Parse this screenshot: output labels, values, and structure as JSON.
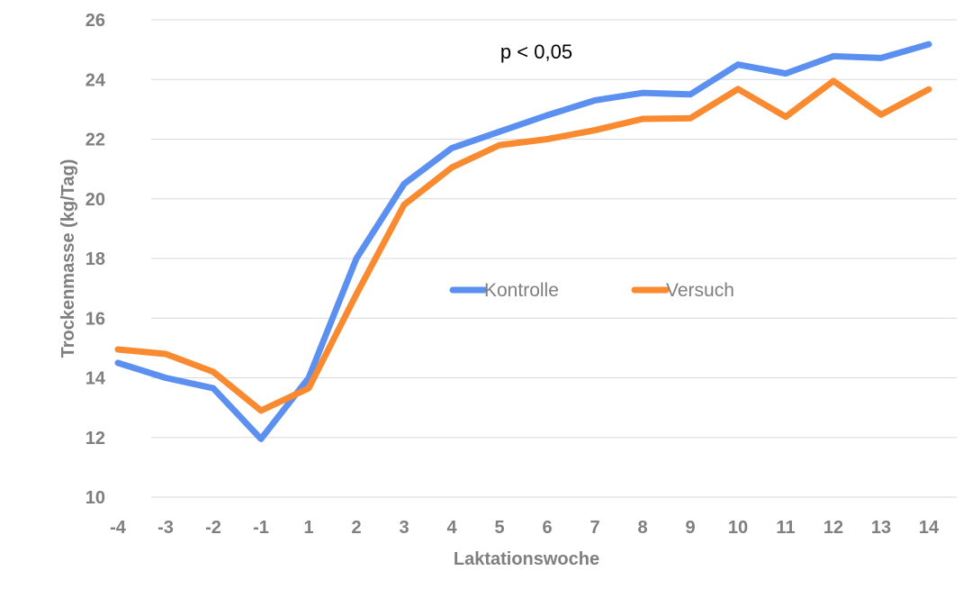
{
  "chart_data": {
    "type": "line",
    "title": "",
    "xlabel": "Laktationswoche",
    "ylabel": "Trockenmasse (kg/Tag)",
    "categories": [
      "-4",
      "-3",
      "-2",
      "-1",
      "1",
      "2",
      "3",
      "4",
      "5",
      "6",
      "7",
      "8",
      "9",
      "10",
      "11",
      "12",
      "13",
      "14"
    ],
    "ylim": [
      10,
      26
    ],
    "yticks": [
      "10",
      "12",
      "14",
      "16",
      "18",
      "20",
      "22",
      "24",
      "26"
    ],
    "grid": true,
    "legend_position": "center",
    "annotation": "p < 0,05",
    "series": [
      {
        "name": "Kontrolle",
        "color": "#5b8ff0",
        "values": [
          14.5,
          14.0,
          13.65,
          11.95,
          14.0,
          18.0,
          20.5,
          21.7,
          22.25,
          22.8,
          23.3,
          23.55,
          23.5,
          24.5,
          24.2,
          24.78,
          24.72,
          25.18
        ]
      },
      {
        "name": "Versuch",
        "color": "#f98a2f",
        "values": [
          14.95,
          14.8,
          14.2,
          12.9,
          13.65,
          16.8,
          19.8,
          21.05,
          21.8,
          22.0,
          22.3,
          22.68,
          22.7,
          23.68,
          22.75,
          23.95,
          22.82,
          23.67
        ]
      }
    ]
  }
}
